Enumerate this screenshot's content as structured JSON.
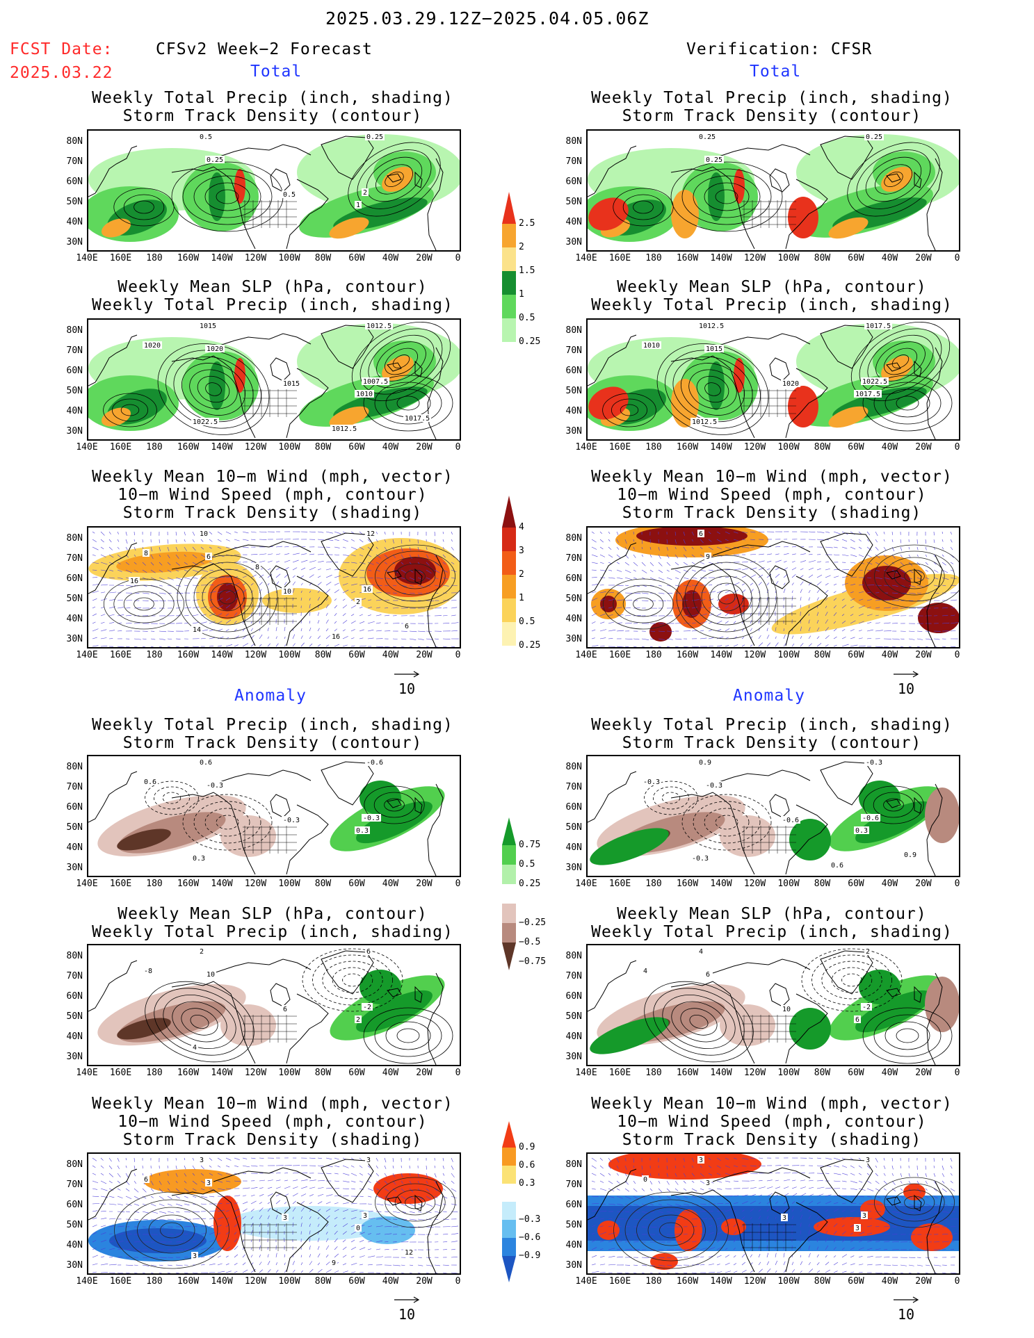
{
  "header": {
    "time_range": "2025.03.29.12Z−2025.04.05.06Z",
    "fcst_label": "FCST Date:",
    "fcst_date": "2025.03.22",
    "left_title": "CFSv2 Week−2 Forecast",
    "right_title": "Verification: CFSR",
    "total_label": "Total",
    "anomaly_label": "Anomaly"
  },
  "titles": {
    "precip_storm": [
      "Weekly Total Precip (inch, shading)",
      "Storm Track Density (contour)"
    ],
    "slp_precip": [
      "Weekly Mean SLP (hPa, contour)",
      "Weekly Total Precip (inch, shading)"
    ],
    "wind": [
      "Weekly Mean 10−m Wind (mph, vector)",
      "10−m Wind Speed (mph, contour)",
      "Storm Track Density (shading)"
    ]
  },
  "axes": {
    "lat_labels": [
      "80N",
      "70N",
      "60N",
      "50N",
      "40N",
      "30N"
    ],
    "lon_labels": [
      "140E",
      "160E",
      "180",
      "160W",
      "140W",
      "120W",
      "100W",
      "80W",
      "60W",
      "40W",
      "20W",
      "0"
    ]
  },
  "vector_ref": "10",
  "colorbars": {
    "precip_total": {
      "labels": [
        "2.5",
        "2",
        "1.5",
        "1",
        "0.5",
        "0.25"
      ],
      "colors": [
        "#e8321c",
        "#f7a52f",
        "#fbe28a",
        "#168e30",
        "#5fd85c",
        "#b8f5b0"
      ]
    },
    "storm_total": {
      "labels": [
        "4",
        "3",
        "2",
        "1",
        "0.5",
        "0.25"
      ],
      "colors": [
        "#8c1010",
        "#d62a16",
        "#f25d17",
        "#f79e22",
        "#fbd35a",
        "#fdf2b2"
      ]
    },
    "precip_anom": {
      "labels": [
        "0.75",
        "0.5",
        "0.25",
        "−0.25",
        "−0.5",
        "−0.75"
      ],
      "colors": [
        "#159a2a",
        "#52cf4e",
        "#b2f0aa",
        "#ffffff",
        "#e2c4bc",
        "#b88a7e",
        "#5e3628"
      ]
    },
    "storm_anom": {
      "labels": [
        "0.9",
        "0.6",
        "0.3",
        "−0.3",
        "−0.6",
        "−0.9"
      ],
      "colors": [
        "#f23c15",
        "#f89a22",
        "#fbe275",
        "#ffffff",
        "#c5ecfb",
        "#66bef0",
        "#2b84df",
        "#1d56c2"
      ]
    }
  },
  "panels": {
    "p1L": {
      "labels": [
        "0.5",
        "0.25",
        "0.25",
        "0.5",
        "1",
        "2"
      ]
    },
    "p1R": {
      "labels": [
        "0.25",
        "0.25",
        "0.25"
      ]
    },
    "p2L": {
      "labels": [
        "1015",
        "1020",
        "1012.5",
        "1015",
        "1010",
        "1007.5",
        "1020",
        "1022.5",
        "1012.5",
        "1017.5"
      ]
    },
    "p2R": {
      "labels": [
        "1012.5",
        "1015",
        "1017.5",
        "1020",
        "1017.5",
        "1022.5",
        "1010",
        "1012.5"
      ]
    },
    "p3L": {
      "labels": [
        "10",
        "6",
        "12",
        "10",
        "2",
        "16",
        "8",
        "14",
        "16",
        "6",
        "16",
        "8"
      ]
    },
    "p3R": {
      "labels": [
        "6",
        "9"
      ]
    },
    "p4L": {
      "labels": [
        "0.6",
        "-0.3",
        "-0.6",
        "-0.3",
        "0.3",
        "-0.3",
        "0.6",
        "0.3"
      ]
    },
    "p4R": {
      "labels": [
        "0.9",
        "-0.3",
        "-0.3",
        "-0.6",
        "0.3",
        "-0.6",
        "-0.3",
        "-0.3",
        "0.6",
        "0.9"
      ]
    },
    "p5L": {
      "labels": [
        "2",
        "10",
        "6",
        "6",
        "2",
        "-2",
        "-8",
        "4"
      ]
    },
    "p5R": {
      "labels": [
        "4",
        "6",
        "2",
        "10",
        "6",
        "-2",
        "4"
      ]
    },
    "p6L": {
      "labels": [
        "3",
        "3",
        "3",
        "3",
        "0",
        "3",
        "6",
        "3",
        "9",
        "12"
      ]
    },
    "p6R": {
      "labels": [
        "3",
        "3",
        "3",
        "3",
        "3",
        "3",
        "0"
      ]
    }
  }
}
